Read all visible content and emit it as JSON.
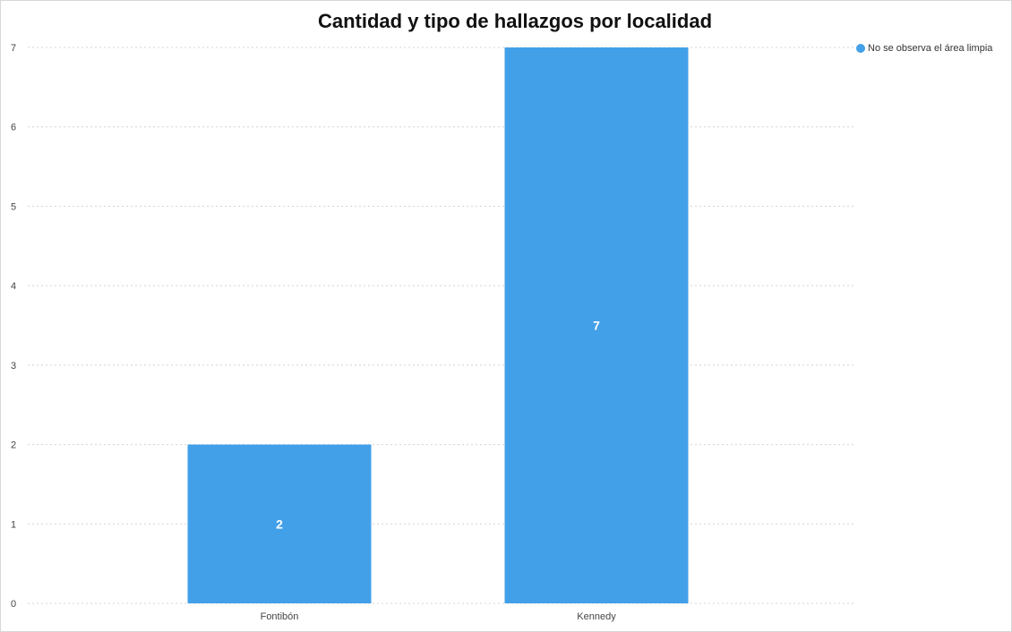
{
  "chart_data": {
    "type": "bar",
    "title": "Cantidad y tipo de hallazgos por localidad",
    "categories": [
      "Fontibón",
      "Kennedy"
    ],
    "series": [
      {
        "name": "No se observa el área limpia",
        "values": [
          2,
          7
        ],
        "color": "#42a0e8"
      }
    ],
    "data_labels": [
      "2",
      "7"
    ],
    "xlabel": "",
    "ylabel": "",
    "ylim": [
      0,
      7
    ],
    "yticks": [
      0,
      1,
      2,
      3,
      4,
      5,
      6,
      7
    ],
    "grid": true,
    "legend_position": "top-right"
  }
}
